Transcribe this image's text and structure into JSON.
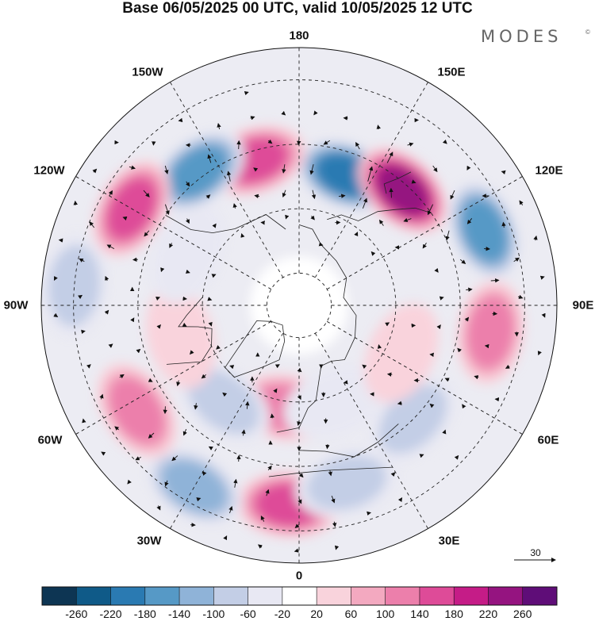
{
  "title": "Base 06/05/2025 00 UTC, valid 10/05/2025 12 UTC",
  "brand": "MODES",
  "brand_mark": "©",
  "longitude_labels": [
    "180",
    "150E",
    "120E",
    "90E",
    "60E",
    "30E",
    "0",
    "30W",
    "60W",
    "90W",
    "120W",
    "150W"
  ],
  "vector_scale_label": "30",
  "colorbar": {
    "colors": [
      "#0d3553",
      "#0f5a88",
      "#2a7ab2",
      "#5699c6",
      "#8fb3d8",
      "#c3cee6",
      "#e8e8f3",
      "#ffffff",
      "#f9d3dc",
      "#f3a9c0",
      "#ec7fab",
      "#de4b98",
      "#c51c87",
      "#951480",
      "#5f0d78"
    ],
    "tick_labels": [
      "-260",
      "-220",
      "-180",
      "-140",
      "-100",
      "-60",
      "-20",
      "20",
      "60",
      "100",
      "140",
      "180",
      "220",
      "260"
    ]
  },
  "anomaly_centers": [
    {
      "lon": 160,
      "lat": 47,
      "value": -230
    },
    {
      "lon": 138,
      "lat": 42,
      "value": 245
    },
    {
      "lon": -163,
      "lat": 43,
      "value": 170
    },
    {
      "lon": -143,
      "lat": 38,
      "value": -175
    },
    {
      "lon": 112,
      "lat": 28,
      "value": -190
    },
    {
      "lon": -120,
      "lat": 30,
      "value": 190
    },
    {
      "lon": -95,
      "lat": 20,
      "value": -115
    },
    {
      "lon": 82,
      "lat": 30,
      "value": 130
    },
    {
      "lon": 45,
      "lat": 40,
      "value": -95
    },
    {
      "lon": -8,
      "lat": 58,
      "value": 120
    },
    {
      "lon": -3,
      "lat": 28,
      "value": 170
    },
    {
      "lon": -30,
      "lat": 25,
      "value": -150
    },
    {
      "lon": -57,
      "lat": 30,
      "value": 150
    },
    {
      "lon": -38,
      "lat": 52,
      "value": -110
    },
    {
      "lon": 15,
      "lat": 33,
      "value": -80
    },
    {
      "lon": -75,
      "lat": 52,
      "value": 70
    },
    {
      "lon": 20,
      "lat": 58,
      "value": -60
    },
    {
      "lon": 65,
      "lat": 55,
      "value": 60
    },
    {
      "lon": -115,
      "lat": 52,
      "value": -40
    }
  ]
}
